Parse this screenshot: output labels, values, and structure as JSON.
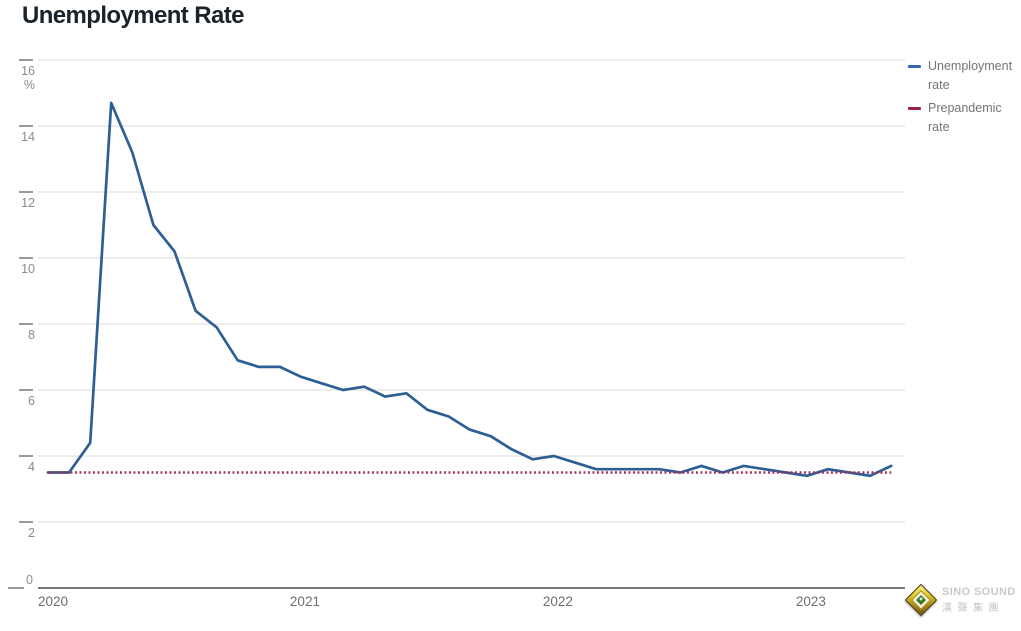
{
  "page": {
    "title": "Unemployment Rate"
  },
  "legend": {
    "items": [
      {
        "label": "Unemployment rate",
        "color": "#3468a8"
      },
      {
        "label": "Prepandemic rate",
        "color": "#9c1f4e"
      }
    ]
  },
  "watermark": {
    "brand": "SINO SOUND",
    "brand_cn": "漢聲集團"
  },
  "chart_data": {
    "type": "line",
    "title": "Unemployment Rate",
    "y_unit": "%",
    "ylim": [
      0,
      16
    ],
    "y_ticks": [
      16,
      14,
      12,
      10,
      8,
      6,
      4,
      2,
      0
    ],
    "x_ticks": [
      "2020",
      "2021",
      "2022",
      "2023"
    ],
    "grid": "horizontal",
    "legend_position": "top-right",
    "x": [
      "2020-01",
      "2020-02",
      "2020-03",
      "2020-04",
      "2020-05",
      "2020-06",
      "2020-07",
      "2020-08",
      "2020-09",
      "2020-10",
      "2020-11",
      "2020-12",
      "2021-01",
      "2021-02",
      "2021-03",
      "2021-04",
      "2021-05",
      "2021-06",
      "2021-07",
      "2021-08",
      "2021-09",
      "2021-10",
      "2021-11",
      "2021-12",
      "2022-01",
      "2022-02",
      "2022-03",
      "2022-04",
      "2022-05",
      "2022-06",
      "2022-07",
      "2022-08",
      "2022-09",
      "2022-10",
      "2022-11",
      "2022-12",
      "2023-01",
      "2023-02",
      "2023-03",
      "2023-04",
      "2023-05"
    ],
    "series": [
      {
        "name": "Unemployment rate",
        "color": "#2d5f94",
        "style": "solid",
        "values": [
          3.5,
          3.5,
          4.4,
          14.7,
          13.2,
          11.0,
          10.2,
          8.4,
          7.9,
          6.9,
          6.7,
          6.7,
          6.4,
          6.2,
          6.0,
          6.1,
          5.8,
          5.9,
          5.4,
          5.2,
          4.8,
          4.6,
          4.2,
          3.9,
          4.0,
          3.8,
          3.6,
          3.6,
          3.6,
          3.6,
          3.5,
          3.7,
          3.5,
          3.7,
          3.6,
          3.5,
          3.4,
          3.6,
          3.5,
          3.4,
          3.7
        ]
      },
      {
        "name": "Prepandemic rate",
        "color": "#a62c5c",
        "style": "dotted",
        "constant": 3.5
      }
    ],
    "colors": {
      "grid_line": "#dadada",
      "axis_line": "#4c4c4c",
      "tick_mark": "#8f8f8f",
      "tick_label": "#8c8c8c",
      "year_label": "#6e6e6e",
      "title": "#1a222b"
    }
  }
}
